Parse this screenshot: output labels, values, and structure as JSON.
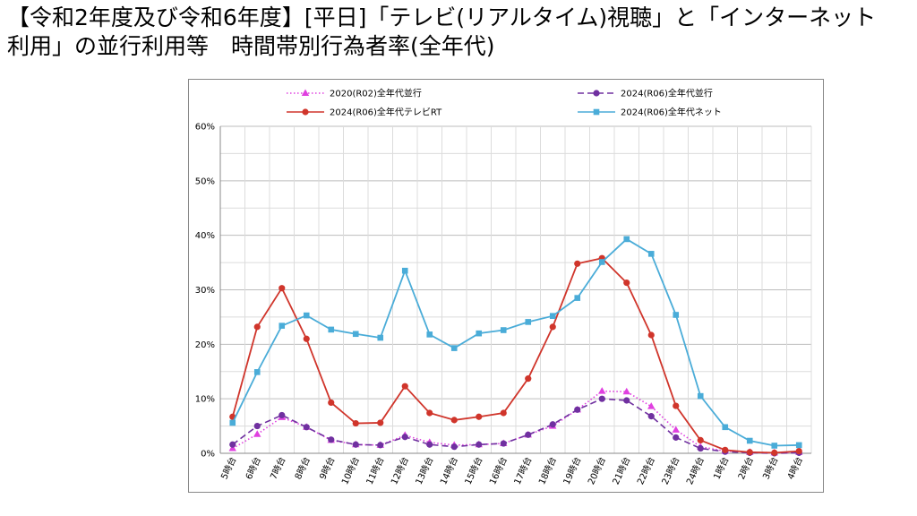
{
  "page": {
    "title_line1": "【令和2年度及び令和6年度】[平日]「テレビ(リアルタイム)視聴」と「インターネット",
    "title_line2": "利用」の並行利用等　時間帯別行為者率(全年代)"
  },
  "chart_data": {
    "type": "line",
    "categories": [
      "5時台",
      "6時台",
      "7時台",
      "8時台",
      "9時台",
      "10時台",
      "11時台",
      "12時台",
      "13時台",
      "14時台",
      "15時台",
      "16時台",
      "17時台",
      "18時台",
      "19時台",
      "20時台",
      "21時台",
      "22時台",
      "23時台",
      "24時台",
      "1時台",
      "2時台",
      "3時台",
      "4時台"
    ],
    "y_ticks": [
      "0%",
      "10%",
      "20%",
      "30%",
      "40%",
      "50%",
      "60%"
    ],
    "ylim": [
      0,
      60
    ],
    "grid": true,
    "legend_position": "top",
    "series": [
      {
        "name": "2020(R02)全年代並行",
        "color": "#e040e0",
        "style": "dotted",
        "marker": "triangle",
        "values": [
          0.9,
          3.5,
          6.6,
          4.8,
          2.4,
          1.6,
          1.5,
          3.3,
          2.0,
          1.5,
          1.6,
          1.8,
          3.4,
          5.0,
          8.0,
          11.4,
          11.3,
          8.6,
          4.3,
          1.2,
          0.4,
          0.2,
          0.1,
          0.2
        ]
      },
      {
        "name": "2024(R06)全年代並行",
        "color": "#7030a0",
        "style": "dashed",
        "marker": "circle",
        "values": [
          1.6,
          5.0,
          7.0,
          4.8,
          2.5,
          1.6,
          1.5,
          3.0,
          1.6,
          1.2,
          1.6,
          1.8,
          3.4,
          5.3,
          8.0,
          10.0,
          9.7,
          6.8,
          2.9,
          0.9,
          0.3,
          0.1,
          0.0,
          0.1
        ]
      },
      {
        "name": "2024(R06)全年代テレビRT",
        "color": "#d0352b",
        "style": "solid",
        "marker": "circle",
        "values": [
          6.7,
          23.2,
          30.3,
          21.0,
          9.3,
          5.5,
          5.6,
          12.3,
          7.4,
          6.1,
          6.7,
          7.4,
          13.7,
          23.2,
          34.8,
          35.8,
          31.3,
          21.7,
          8.7,
          2.4,
          0.6,
          0.2,
          0.1,
          0.4
        ]
      },
      {
        "name": "2024(R06)全年代ネット",
        "color": "#4aacd8",
        "style": "solid",
        "marker": "square",
        "values": [
          5.6,
          14.9,
          23.4,
          25.3,
          22.7,
          21.9,
          21.2,
          33.5,
          21.8,
          19.3,
          22.0,
          22.6,
          24.1,
          25.2,
          28.5,
          35.1,
          39.3,
          36.6,
          25.4,
          10.5,
          4.8,
          2.3,
          1.4,
          1.5
        ]
      }
    ]
  }
}
